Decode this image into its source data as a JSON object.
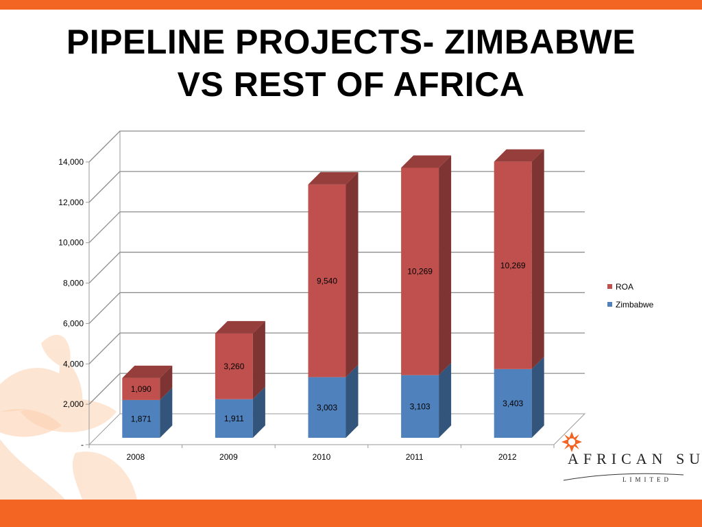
{
  "slide": {
    "title_line1": "PIPELINE PROJECTS- ZIMBABWE",
    "title_line2": "VS REST OF AFRICA",
    "accent_color": "#f26522"
  },
  "logo": {
    "name": "AFRICAN SUN",
    "sub": "LIMITED",
    "icon": "sun-burst-icon"
  },
  "chart_data": {
    "type": "bar",
    "stacked": true,
    "style": "3d",
    "categories": [
      "2008",
      "2009",
      "2010",
      "2011",
      "2012"
    ],
    "series": [
      {
        "name": "Zimbabwe",
        "color": "#4f81bd",
        "values": [
          1871,
          1911,
          3003,
          3103,
          3403
        ],
        "labels": [
          "1,871",
          "1,911",
          "3,003",
          "3,103",
          "3,403"
        ]
      },
      {
        "name": "ROA",
        "color": "#c0504d",
        "values": [
          1090,
          3260,
          9540,
          10269,
          10269
        ],
        "labels": [
          "1,090",
          "3,260",
          "9,540",
          "10,269",
          "10,269"
        ]
      }
    ],
    "yticks": [
      0,
      2000,
      4000,
      6000,
      8000,
      10000,
      12000,
      14000
    ],
    "ytick_labels": [
      "-",
      "2,000",
      "4,000",
      "6,000",
      "8,000",
      "10,000",
      "12,000",
      "14,000"
    ],
    "ylim": [
      0,
      14000
    ],
    "grid": true,
    "legend_position": "right",
    "legend_order": [
      "ROA",
      "Zimbabwe"
    ]
  }
}
